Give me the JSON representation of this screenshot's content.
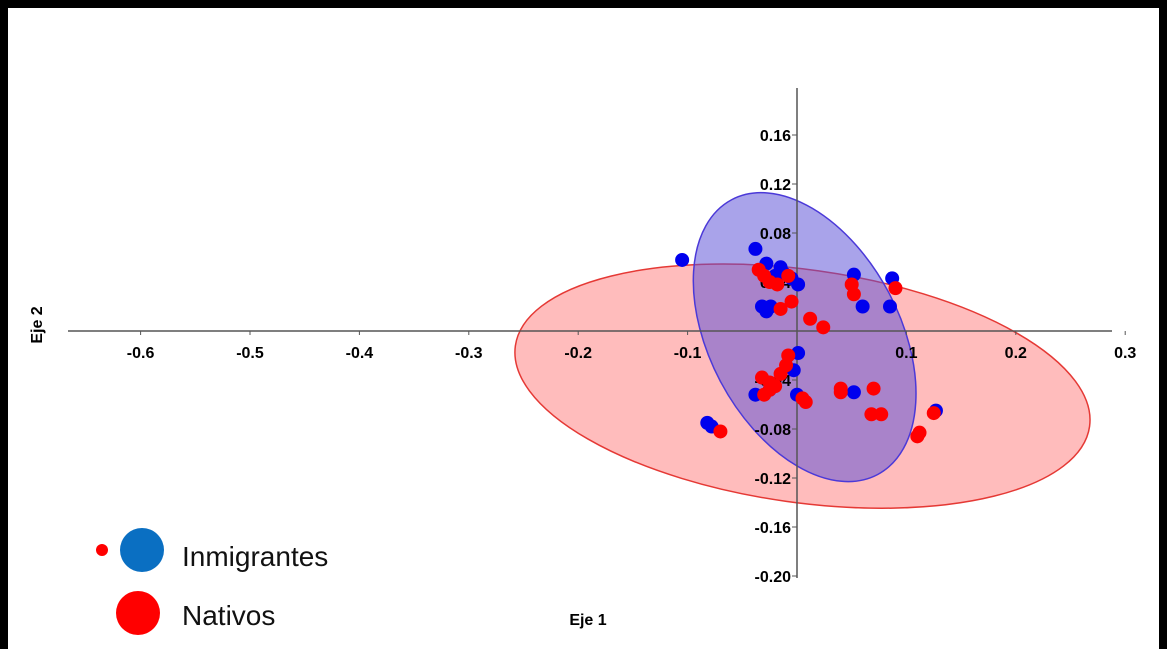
{
  "chart_data": {
    "type": "scatter",
    "xlabel": "Eje 1",
    "ylabel": "Eje 2",
    "xlim": [
      -0.7,
      0.3
    ],
    "ylim": [
      -0.2,
      0.16
    ],
    "x_ticks": [
      -0.6,
      -0.5,
      -0.4,
      -0.3,
      -0.2,
      -0.1,
      0.1,
      0.2,
      0.3
    ],
    "y_ticks": [
      0.16,
      0.12,
      0.08,
      0.04,
      -0.04,
      -0.08,
      -0.12,
      -0.16,
      -0.2
    ],
    "x_tick_labels": [
      "-0.6",
      "-0.5",
      "-0.4",
      "-0.3",
      "-0.2",
      "-0.1",
      "0.1",
      "0.2",
      "0.3"
    ],
    "y_tick_labels": [
      "0.16",
      "0.12",
      "0.08",
      "0.04",
      "-0.04",
      "-0.08",
      "-0.12",
      "-0.16",
      "-0.20"
    ],
    "grid": false,
    "legend_position": "bottom-left",
    "series": [
      {
        "name": "Inmigrantes",
        "color": "#0000ee",
        "points": [
          [
            -0.105,
            0.058
          ],
          [
            -0.038,
            0.067
          ],
          [
            -0.028,
            0.055
          ],
          [
            -0.015,
            0.052
          ],
          [
            -0.012,
            0.047
          ],
          [
            -0.02,
            0.045
          ],
          [
            -0.005,
            0.043
          ],
          [
            0.001,
            0.038
          ],
          [
            -0.032,
            0.02
          ],
          [
            -0.024,
            0.02
          ],
          [
            -0.028,
            0.016
          ],
          [
            0.052,
            0.046
          ],
          [
            0.087,
            0.043
          ],
          [
            0.06,
            0.02
          ],
          [
            0.085,
            0.02
          ],
          [
            0.001,
            -0.018
          ],
          [
            -0.003,
            -0.032
          ],
          [
            -0.038,
            -0.052
          ],
          [
            -0.025,
            -0.048
          ],
          [
            0.0,
            -0.052
          ],
          [
            0.052,
            -0.05
          ],
          [
            0.127,
            -0.065
          ],
          [
            -0.082,
            -0.075
          ],
          [
            -0.078,
            -0.078
          ]
        ]
      },
      {
        "name": "Nativos",
        "color": "#ff0000",
        "points": [
          [
            -0.035,
            0.05
          ],
          [
            -0.03,
            0.045
          ],
          [
            -0.025,
            0.04
          ],
          [
            -0.018,
            0.038
          ],
          [
            -0.008,
            0.045
          ],
          [
            0.05,
            0.038
          ],
          [
            0.052,
            0.03
          ],
          [
            0.09,
            0.035
          ],
          [
            -0.005,
            0.024
          ],
          [
            -0.015,
            0.018
          ],
          [
            0.012,
            0.01
          ],
          [
            0.024,
            0.003
          ],
          [
            -0.008,
            -0.02
          ],
          [
            -0.01,
            -0.028
          ],
          [
            -0.015,
            -0.035
          ],
          [
            -0.032,
            -0.038
          ],
          [
            -0.025,
            -0.042
          ],
          [
            -0.02,
            -0.045
          ],
          [
            0.04,
            -0.047
          ],
          [
            0.07,
            -0.047
          ],
          [
            -0.03,
            -0.052
          ],
          [
            -0.025,
            -0.048
          ],
          [
            0.04,
            -0.05
          ],
          [
            0.005,
            -0.055
          ],
          [
            0.008,
            -0.058
          ],
          [
            0.068,
            -0.068
          ],
          [
            0.077,
            -0.068
          ],
          [
            0.125,
            -0.067
          ],
          [
            0.112,
            -0.083
          ],
          [
            0.11,
            -0.086
          ],
          [
            -0.07,
            -0.082
          ]
        ]
      }
    ],
    "ellipses": [
      {
        "series": "Nativos",
        "center": [
          0.005,
          -0.045
        ],
        "semi_axes": [
          0.265,
          0.095
        ],
        "rotation_deg": 8,
        "fill": "#ff5050",
        "fill_opacity": 0.38,
        "stroke": "#e53935"
      },
      {
        "series": "Inmigrantes",
        "center": [
          0.007,
          -0.005
        ],
        "semi_axes": [
          0.087,
          0.127
        ],
        "rotation_deg": -28,
        "fill": "#5a4fd6",
        "fill_opacity": 0.52,
        "stroke": "#4b39d8"
      }
    ],
    "legend": {
      "items": [
        {
          "label": "Inmigrantes",
          "color": "#0a6fc2"
        },
        {
          "label": "Nativos",
          "color": "#ff0000"
        }
      ]
    }
  }
}
